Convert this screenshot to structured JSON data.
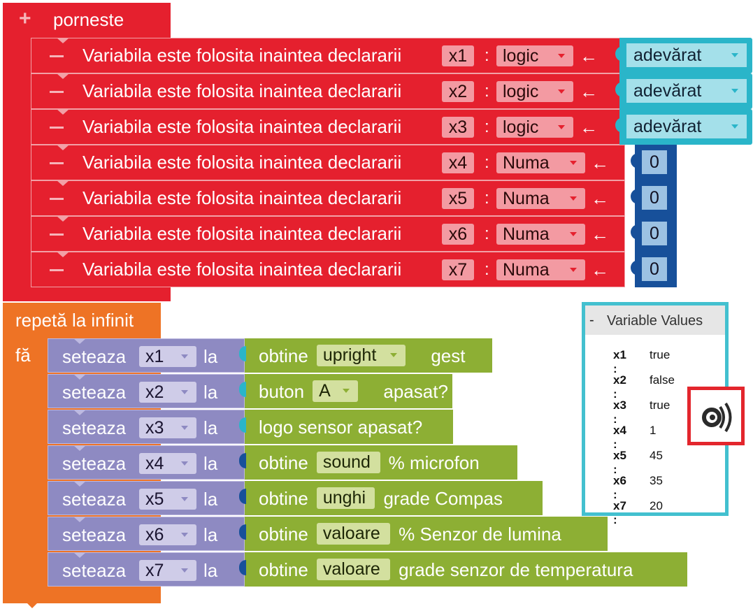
{
  "start_block": {
    "icon": "plus-icon",
    "label": "porneste"
  },
  "declare_rows": [
    {
      "label": "Variabila este folosita inaintea declararii",
      "var": "x1",
      "type": "logic",
      "arrow": "←",
      "value": "adevărat",
      "value_kind": "boolean"
    },
    {
      "label": "Variabila este folosita inaintea declararii",
      "var": "x2",
      "type": "logic",
      "arrow": "←",
      "value": "adevărat",
      "value_kind": "boolean"
    },
    {
      "label": "Variabila este folosita inaintea declararii",
      "var": "x3",
      "type": "logic",
      "arrow": "←",
      "value": "adevărat",
      "value_kind": "boolean"
    },
    {
      "label": "Variabila este folosita inaintea declararii",
      "var": "x4",
      "type": "Numa",
      "arrow": "←",
      "value": "0",
      "value_kind": "number"
    },
    {
      "label": "Variabila este folosita inaintea declararii",
      "var": "x5",
      "type": "Numa",
      "arrow": "←",
      "value": "0",
      "value_kind": "number"
    },
    {
      "label": "Variabila este folosita inaintea declararii",
      "var": "x6",
      "type": "Numa",
      "arrow": "←",
      "value": "0",
      "value_kind": "number"
    },
    {
      "label": "Variabila este folosita inaintea declararii",
      "var": "x7",
      "type": "Numa",
      "arrow": "←",
      "value": "0",
      "value_kind": "number"
    }
  ],
  "colon": ":",
  "loop_block": {
    "label": "repetă la infinit",
    "do_label": "fă"
  },
  "set_rows": [
    {
      "set_label": "seteaza",
      "var": "x1",
      "to_label": "la",
      "parts": [
        {
          "t": "text",
          "v": "obtine"
        },
        {
          "t": "dd",
          "v": "upright"
        },
        {
          "t": "text",
          "v": "gest"
        }
      ]
    },
    {
      "set_label": "seteaza",
      "var": "x2",
      "to_label": "la",
      "parts": [
        {
          "t": "text",
          "v": "buton"
        },
        {
          "t": "dd",
          "v": "A"
        },
        {
          "t": "text",
          "v": "apasat?"
        }
      ]
    },
    {
      "set_label": "seteaza",
      "var": "x3",
      "to_label": "la",
      "parts": [
        {
          "t": "text",
          "v": "logo sensor  apasat?"
        }
      ]
    },
    {
      "set_label": "seteaza",
      "var": "x4",
      "to_label": "la",
      "parts": [
        {
          "t": "text",
          "v": "obtine"
        },
        {
          "t": "chip",
          "v": "sound"
        },
        {
          "t": "text",
          "v": "%  microfon"
        }
      ]
    },
    {
      "set_label": "seteaza",
      "var": "x5",
      "to_label": "la",
      "parts": [
        {
          "t": "text",
          "v": "obtine"
        },
        {
          "t": "chip",
          "v": "unghi"
        },
        {
          "t": "text",
          "v": "grade  Compas"
        }
      ]
    },
    {
      "set_label": "seteaza",
      "var": "x6",
      "to_label": "la",
      "parts": [
        {
          "t": "text",
          "v": "obtine"
        },
        {
          "t": "chip",
          "v": "valoare"
        },
        {
          "t": "text",
          "v": "%  Senzor de lumina"
        }
      ]
    },
    {
      "set_label": "seteaza",
      "var": "x7",
      "to_label": "la",
      "parts": [
        {
          "t": "text",
          "v": "obtine"
        },
        {
          "t": "chip",
          "v": "valoare"
        },
        {
          "t": "text",
          "v": "grade  senzor de temperatura"
        }
      ]
    }
  ],
  "variable_panel": {
    "collapse_symbol": "-",
    "title": "Variable Values",
    "rows": [
      {
        "key": "x1 :",
        "value": "true"
      },
      {
        "key": "x2 :",
        "value": "false"
      },
      {
        "key": "x3 :",
        "value": "true"
      },
      {
        "key": "x4 :",
        "value": "1"
      },
      {
        "key": "x5 :",
        "value": "45"
      },
      {
        "key": "x6 :",
        "value": "35"
      },
      {
        "key": "x7 :",
        "value": "20"
      }
    ]
  },
  "icons": {
    "sound_button": "sound-wave-icon"
  },
  "colors": {
    "start_red": "#e5202e",
    "loop_orange": "#ee7325",
    "set_purple": "#8e8ac2",
    "sensor_green": "#8daf34",
    "bool_cyan": "#2ab5c9",
    "number_blue": "#17509a",
    "highlight_red": "#e3262d",
    "panel_border": "#43c0cf"
  }
}
